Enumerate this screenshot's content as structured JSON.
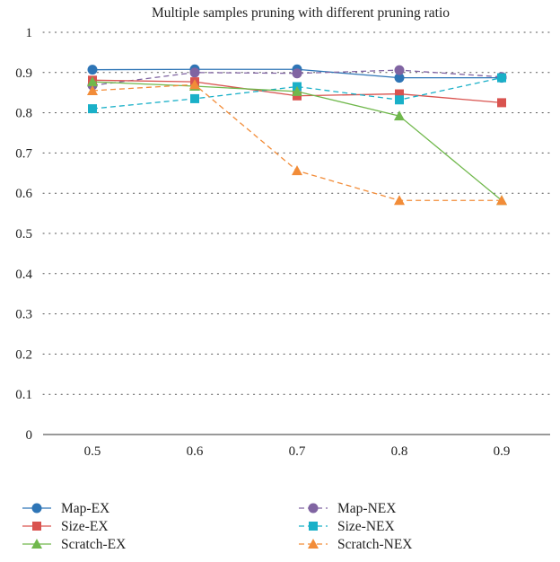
{
  "chart_data": {
    "type": "line",
    "title": "Multiple samples pruning with different pruning ratio",
    "xlabel": "",
    "ylabel": "",
    "categories": [
      "0.5",
      "0.6",
      "0.7",
      "0.8",
      "0.9"
    ],
    "yticks": [
      "0",
      "0.1",
      "0.2",
      "0.3",
      "0.4",
      "0.5",
      "0.6",
      "0.7",
      "0.8",
      "0.9",
      "1"
    ],
    "ylim": [
      0,
      1
    ],
    "grid": "horizontal dotted",
    "legend_position": "bottom",
    "series": [
      {
        "name": "Map-EX",
        "values": [
          0.907,
          0.908,
          0.908,
          0.887,
          0.887
        ],
        "color": "#2e75b6",
        "marker": "circle",
        "dash": false
      },
      {
        "name": "Map-NEX",
        "values": [
          0.868,
          0.9,
          0.898,
          0.906,
          0.889
        ],
        "color": "#8064a2",
        "marker": "circle",
        "dash": true
      },
      {
        "name": "Size-EX",
        "values": [
          0.881,
          0.877,
          0.842,
          0.847,
          0.825
        ],
        "color": "#d9534f",
        "marker": "square",
        "dash": false
      },
      {
        "name": "Size-NEX",
        "values": [
          0.81,
          0.835,
          0.865,
          0.832,
          0.887
        ],
        "color": "#1ab0c8",
        "marker": "square",
        "dash": true
      },
      {
        "name": "Scratch-EX",
        "values": [
          0.877,
          0.866,
          0.853,
          0.792,
          0.582
        ],
        "color": "#70b84c",
        "marker": "triangle",
        "dash": false
      },
      {
        "name": "Scratch-NEX",
        "values": [
          0.855,
          0.87,
          0.656,
          0.582,
          0.582
        ],
        "color": "#f28c38",
        "marker": "triangle",
        "dash": true
      }
    ]
  }
}
